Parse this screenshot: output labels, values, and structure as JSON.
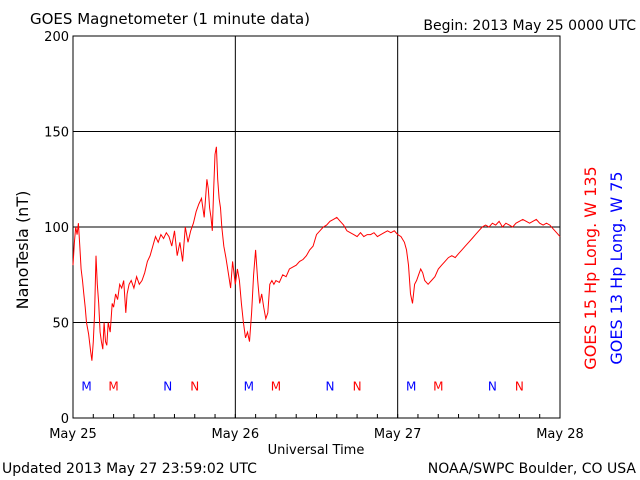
{
  "header": {
    "title": "GOES Magnetometer (1 minute data)",
    "begin": "Begin:  2013 May 25 0000 UTC"
  },
  "footer": {
    "updated": "Updated 2013 May 27 23:59:02 UTC",
    "credit": "NOAA/SWPC Boulder, CO USA"
  },
  "colors": {
    "goes15": "#ff0000",
    "goes13": "#0000ff",
    "grid": "#000000"
  },
  "chart_data": {
    "type": "line",
    "title": "GOES Magnetometer (1 minute data)",
    "xlabel": "Universal Time",
    "ylabel": "NanoTesla (nT)",
    "ylim": [
      0,
      200
    ],
    "xlim": [
      0,
      72
    ],
    "x_unit": "hours since 2013 May 25 0000 UTC",
    "yticks": [
      0,
      50,
      100,
      150,
      200
    ],
    "xticks": [
      {
        "x": 0,
        "label": "May 25"
      },
      {
        "x": 24,
        "label": "May 26"
      },
      {
        "x": 48,
        "label": "May 27"
      },
      {
        "x": 72,
        "label": "May 28"
      }
    ],
    "grid": true,
    "legend": [
      {
        "name": "GOES 15 Hp  Long. W 135",
        "color": "#ff0000"
      },
      {
        "name": "GOES 13 Hp  Long. W 75",
        "color": "#0000ff"
      }
    ],
    "series": [
      {
        "name": "GOES 15 Hp  Long. W 135",
        "color": "#ff0000",
        "points": [
          [
            0.0,
            80
          ],
          [
            0.2,
            92
          ],
          [
            0.4,
            100
          ],
          [
            0.6,
            96
          ],
          [
            0.8,
            102
          ],
          [
            1.0,
            90
          ],
          [
            1.2,
            78
          ],
          [
            1.4,
            72
          ],
          [
            1.6,
            65
          ],
          [
            1.8,
            58
          ],
          [
            2.0,
            50
          ],
          [
            2.3,
            44
          ],
          [
            2.6,
            35
          ],
          [
            2.8,
            30
          ],
          [
            3.0,
            40
          ],
          [
            3.2,
            55
          ],
          [
            3.4,
            85
          ],
          [
            3.6,
            70
          ],
          [
            3.8,
            60
          ],
          [
            4.0,
            45
          ],
          [
            4.2,
            40
          ],
          [
            4.4,
            36
          ],
          [
            4.6,
            50
          ],
          [
            4.8,
            40
          ],
          [
            5.0,
            38
          ],
          [
            5.2,
            50
          ],
          [
            5.5,
            45
          ],
          [
            5.8,
            60
          ],
          [
            6.0,
            58
          ],
          [
            6.3,
            65
          ],
          [
            6.6,
            62
          ],
          [
            6.9,
            70
          ],
          [
            7.2,
            68
          ],
          [
            7.5,
            72
          ],
          [
            7.8,
            55
          ],
          [
            8.0,
            65
          ],
          [
            8.3,
            70
          ],
          [
            8.6,
            72
          ],
          [
            9.0,
            68
          ],
          [
            9.4,
            74
          ],
          [
            9.8,
            70
          ],
          [
            10.2,
            72
          ],
          [
            10.6,
            76
          ],
          [
            11.0,
            82
          ],
          [
            11.4,
            85
          ],
          [
            11.8,
            90
          ],
          [
            12.2,
            95
          ],
          [
            12.6,
            92
          ],
          [
            13.0,
            96
          ],
          [
            13.4,
            94
          ],
          [
            13.8,
            97
          ],
          [
            14.2,
            95
          ],
          [
            14.6,
            90
          ],
          [
            15.0,
            98
          ],
          [
            15.4,
            85
          ],
          [
            15.8,
            92
          ],
          [
            16.2,
            82
          ],
          [
            16.6,
            100
          ],
          [
            17.0,
            92
          ],
          [
            17.4,
            98
          ],
          [
            17.8,
            102
          ],
          [
            18.2,
            108
          ],
          [
            18.6,
            112
          ],
          [
            19.0,
            115
          ],
          [
            19.4,
            105
          ],
          [
            19.8,
            125
          ],
          [
            20.0,
            120
          ],
          [
            20.2,
            110
          ],
          [
            20.4,
            105
          ],
          [
            20.6,
            98
          ],
          [
            20.8,
            120
          ],
          [
            21.0,
            138
          ],
          [
            21.2,
            142
          ],
          [
            21.4,
            125
          ],
          [
            21.6,
            115
          ],
          [
            21.8,
            110
          ],
          [
            22.0,
            100
          ],
          [
            22.3,
            90
          ],
          [
            22.6,
            84
          ],
          [
            23.0,
            75
          ],
          [
            23.3,
            68
          ],
          [
            23.6,
            82
          ],
          [
            24.0,
            70
          ],
          [
            24.3,
            78
          ],
          [
            24.6,
            72
          ],
          [
            24.9,
            60
          ],
          [
            25.2,
            50
          ],
          [
            25.5,
            42
          ],
          [
            25.8,
            45
          ],
          [
            26.1,
            40
          ],
          [
            26.4,
            55
          ],
          [
            26.7,
            75
          ],
          [
            27.0,
            88
          ],
          [
            27.3,
            72
          ],
          [
            27.6,
            60
          ],
          [
            27.9,
            65
          ],
          [
            28.2,
            58
          ],
          [
            28.5,
            52
          ],
          [
            28.8,
            55
          ],
          [
            29.1,
            70
          ],
          [
            29.4,
            72
          ],
          [
            29.7,
            70
          ],
          [
            30.0,
            72
          ],
          [
            30.5,
            71
          ],
          [
            31.0,
            75
          ],
          [
            31.5,
            74
          ],
          [
            32.0,
            78
          ],
          [
            32.5,
            79
          ],
          [
            33.0,
            80
          ],
          [
            33.5,
            82
          ],
          [
            34.0,
            83
          ],
          [
            34.5,
            85
          ],
          [
            35.0,
            88
          ],
          [
            35.5,
            90
          ],
          [
            36.0,
            96
          ],
          [
            36.5,
            98
          ],
          [
            37.0,
            100
          ],
          [
            37.5,
            101
          ],
          [
            38.0,
            103
          ],
          [
            38.5,
            104
          ],
          [
            39.0,
            105
          ],
          [
            39.5,
            103
          ],
          [
            40.0,
            101
          ],
          [
            40.5,
            98
          ],
          [
            41.0,
            97
          ],
          [
            41.5,
            96
          ],
          [
            42.0,
            95
          ],
          [
            42.5,
            97
          ],
          [
            43.0,
            95
          ],
          [
            43.5,
            96
          ],
          [
            44.0,
            96
          ],
          [
            44.5,
            97
          ],
          [
            45.0,
            95
          ],
          [
            45.5,
            96
          ],
          [
            46.0,
            97
          ],
          [
            46.5,
            98
          ],
          [
            47.0,
            97
          ],
          [
            47.5,
            98
          ],
          [
            48.0,
            96
          ],
          [
            48.5,
            95
          ],
          [
            49.0,
            92
          ],
          [
            49.3,
            88
          ],
          [
            49.6,
            80
          ],
          [
            49.9,
            65
          ],
          [
            50.2,
            60
          ],
          [
            50.5,
            70
          ],
          [
            50.8,
            72
          ],
          [
            51.1,
            75
          ],
          [
            51.4,
            78
          ],
          [
            51.7,
            76
          ],
          [
            52.0,
            72
          ],
          [
            52.5,
            70
          ],
          [
            53.0,
            72
          ],
          [
            53.5,
            74
          ],
          [
            54.0,
            78
          ],
          [
            54.5,
            80
          ],
          [
            55.0,
            82
          ],
          [
            55.5,
            84
          ],
          [
            56.0,
            85
          ],
          [
            56.5,
            84
          ],
          [
            57.0,
            86
          ],
          [
            57.5,
            88
          ],
          [
            58.0,
            90
          ],
          [
            58.5,
            92
          ],
          [
            59.0,
            94
          ],
          [
            59.5,
            96
          ],
          [
            60.0,
            98
          ],
          [
            60.5,
            100
          ],
          [
            61.0,
            101
          ],
          [
            61.5,
            100
          ],
          [
            62.0,
            102
          ],
          [
            62.5,
            101
          ],
          [
            63.0,
            103
          ],
          [
            63.5,
            100
          ],
          [
            64.0,
            102
          ],
          [
            64.5,
            101
          ],
          [
            65.0,
            100
          ],
          [
            65.5,
            102
          ],
          [
            66.0,
            103
          ],
          [
            66.5,
            104
          ],
          [
            67.0,
            103
          ],
          [
            67.5,
            102
          ],
          [
            68.0,
            103
          ],
          [
            68.5,
            104
          ],
          [
            69.0,
            102
          ],
          [
            69.5,
            101
          ],
          [
            70.0,
            102
          ],
          [
            70.5,
            101
          ],
          [
            71.0,
            99
          ],
          [
            71.5,
            97
          ],
          [
            72.0,
            95
          ]
        ]
      }
    ],
    "annotations": [
      {
        "text": "M",
        "x": 2.0,
        "y": 17,
        "color": "#0000ff"
      },
      {
        "text": "M",
        "x": 6.0,
        "y": 17,
        "color": "#ff0000"
      },
      {
        "text": "N",
        "x": 14.0,
        "y": 17,
        "color": "#0000ff"
      },
      {
        "text": "N",
        "x": 18.0,
        "y": 17,
        "color": "#ff0000"
      },
      {
        "text": "M",
        "x": 26.0,
        "y": 17,
        "color": "#0000ff"
      },
      {
        "text": "M",
        "x": 30.0,
        "y": 17,
        "color": "#ff0000"
      },
      {
        "text": "N",
        "x": 38.0,
        "y": 17,
        "color": "#0000ff"
      },
      {
        "text": "N",
        "x": 42.0,
        "y": 17,
        "color": "#ff0000"
      },
      {
        "text": "M",
        "x": 50.0,
        "y": 17,
        "color": "#0000ff"
      },
      {
        "text": "M",
        "x": 54.0,
        "y": 17,
        "color": "#ff0000"
      },
      {
        "text": "N",
        "x": 62.0,
        "y": 17,
        "color": "#0000ff"
      },
      {
        "text": "N",
        "x": 66.0,
        "y": 17,
        "color": "#ff0000"
      }
    ]
  }
}
